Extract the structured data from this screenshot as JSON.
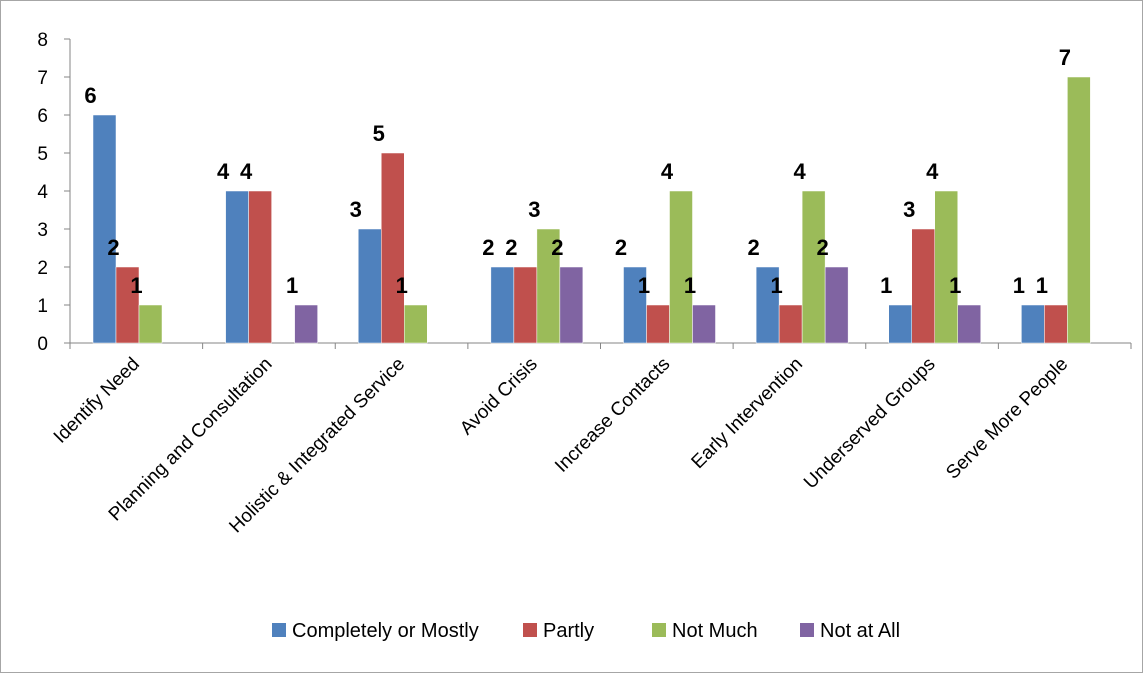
{
  "chart_data": {
    "type": "bar",
    "categories": [
      "Identify Need",
      "Planning and Consultation",
      "Holistic & Integrated Service",
      "Avoid Crisis",
      "Increase Contacts",
      "Early Intervention",
      "Underserved Groups",
      "Serve More People"
    ],
    "series": [
      {
        "name": "Completely or Mostly",
        "color": "#4f81bd",
        "values": [
          6,
          4,
          3,
          2,
          2,
          2,
          1,
          1
        ]
      },
      {
        "name": "Partly",
        "color": "#c0504d",
        "values": [
          2,
          4,
          5,
          2,
          1,
          1,
          3,
          1
        ]
      },
      {
        "name": "Not Much",
        "color": "#9bbb59",
        "values": [
          1,
          null,
          1,
          3,
          4,
          4,
          4,
          7
        ]
      },
      {
        "name": "Not at All",
        "color": "#8064a2",
        "values": [
          null,
          1,
          null,
          2,
          1,
          2,
          1,
          null
        ]
      }
    ],
    "ylim": [
      0,
      8
    ],
    "yticks": [
      0,
      1,
      2,
      3,
      4,
      5,
      6,
      7,
      8
    ],
    "xlabel": "",
    "ylabel": "",
    "title": "",
    "grid": false,
    "legend": "bottom",
    "data_labels": true
  }
}
